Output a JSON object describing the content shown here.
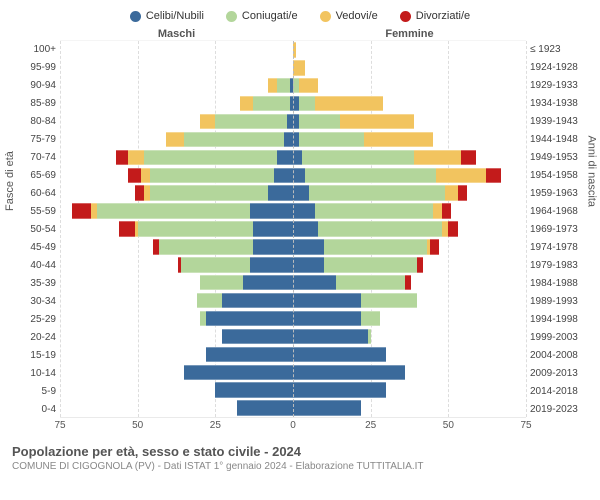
{
  "legend": [
    {
      "label": "Celibi/Nubili",
      "color": "#3b6a9b"
    },
    {
      "label": "Coniugati/e",
      "color": "#b3d69b"
    },
    {
      "label": "Vedovi/e",
      "color": "#f2c45f"
    },
    {
      "label": "Divorziati/e",
      "color": "#c31b1b"
    }
  ],
  "header_male": "Maschi",
  "header_female": "Femmine",
  "axis_left_title": "Fasce di età",
  "axis_right_title": "Anni di nascita",
  "x_max": 75,
  "x_ticks_male": [
    75,
    50,
    25
  ],
  "x_ticks_female": [
    25,
    50,
    75
  ],
  "title": "Popolazione per età, sesso e stato civile - 2024",
  "subtitle": "COMUNE DI CIGOGNOLA (PV) - Dati ISTAT 1° gennaio 2024 - Elaborazione TUTTITALIA.IT",
  "colors": {
    "celibi": "#3b6a9b",
    "coniugati": "#b3d69b",
    "vedovi": "#f2c45f",
    "divorziati": "#c31b1b",
    "grid": "#dddddd",
    "centerline": "#bbbbbb",
    "text": "#555555",
    "bg": "#ffffff"
  },
  "style": {
    "bar_gap_ratio": 0.14,
    "font_family": "Arial, Helvetica, sans-serif",
    "legend_fontsize": 11,
    "axis_fontsize": 10,
    "title_fontsize": 13,
    "subtitle_fontsize": 10
  },
  "rows": [
    {
      "age": "100+",
      "birth": "≤ 1923",
      "m": {
        "c": 0,
        "co": 0,
        "v": 0,
        "d": 0
      },
      "f": {
        "c": 0,
        "co": 0,
        "v": 1,
        "d": 0
      }
    },
    {
      "age": "95-99",
      "birth": "1924-1928",
      "m": {
        "c": 0,
        "co": 0,
        "v": 0,
        "d": 0
      },
      "f": {
        "c": 0,
        "co": 0,
        "v": 4,
        "d": 0
      }
    },
    {
      "age": "90-94",
      "birth": "1929-1933",
      "m": {
        "c": 1,
        "co": 4,
        "v": 3,
        "d": 0
      },
      "f": {
        "c": 0,
        "co": 2,
        "v": 6,
        "d": 0
      }
    },
    {
      "age": "85-89",
      "birth": "1934-1938",
      "m": {
        "c": 1,
        "co": 12,
        "v": 4,
        "d": 0
      },
      "f": {
        "c": 2,
        "co": 5,
        "v": 22,
        "d": 0
      }
    },
    {
      "age": "80-84",
      "birth": "1939-1943",
      "m": {
        "c": 2,
        "co": 23,
        "v": 5,
        "d": 0
      },
      "f": {
        "c": 2,
        "co": 13,
        "v": 24,
        "d": 0
      }
    },
    {
      "age": "75-79",
      "birth": "1944-1948",
      "m": {
        "c": 3,
        "co": 32,
        "v": 6,
        "d": 0
      },
      "f": {
        "c": 2,
        "co": 21,
        "v": 22,
        "d": 0
      }
    },
    {
      "age": "70-74",
      "birth": "1949-1953",
      "m": {
        "c": 5,
        "co": 43,
        "v": 5,
        "d": 4
      },
      "f": {
        "c": 3,
        "co": 36,
        "v": 15,
        "d": 5
      }
    },
    {
      "age": "65-69",
      "birth": "1954-1958",
      "m": {
        "c": 6,
        "co": 40,
        "v": 3,
        "d": 4
      },
      "f": {
        "c": 4,
        "co": 42,
        "v": 16,
        "d": 5
      }
    },
    {
      "age": "60-64",
      "birth": "1959-1963",
      "m": {
        "c": 8,
        "co": 38,
        "v": 2,
        "d": 3
      },
      "f": {
        "c": 5,
        "co": 44,
        "v": 4,
        "d": 3
      }
    },
    {
      "age": "55-59",
      "birth": "1964-1968",
      "m": {
        "c": 14,
        "co": 49,
        "v": 2,
        "d": 6
      },
      "f": {
        "c": 7,
        "co": 38,
        "v": 3,
        "d": 3
      }
    },
    {
      "age": "50-54",
      "birth": "1969-1973",
      "m": {
        "c": 13,
        "co": 37,
        "v": 1,
        "d": 5
      },
      "f": {
        "c": 8,
        "co": 40,
        "v": 2,
        "d": 3
      }
    },
    {
      "age": "45-49",
      "birth": "1974-1978",
      "m": {
        "c": 13,
        "co": 30,
        "v": 0,
        "d": 2
      },
      "f": {
        "c": 10,
        "co": 33,
        "v": 1,
        "d": 3
      }
    },
    {
      "age": "40-44",
      "birth": "1979-1983",
      "m": {
        "c": 14,
        "co": 22,
        "v": 0,
        "d": 1
      },
      "f": {
        "c": 10,
        "co": 30,
        "v": 0,
        "d": 2
      }
    },
    {
      "age": "35-39",
      "birth": "1984-1988",
      "m": {
        "c": 16,
        "co": 14,
        "v": 0,
        "d": 0
      },
      "f": {
        "c": 14,
        "co": 22,
        "v": 0,
        "d": 2
      }
    },
    {
      "age": "30-34",
      "birth": "1989-1993",
      "m": {
        "c": 23,
        "co": 8,
        "v": 0,
        "d": 0
      },
      "f": {
        "c": 22,
        "co": 18,
        "v": 0,
        "d": 0
      }
    },
    {
      "age": "25-29",
      "birth": "1994-1998",
      "m": {
        "c": 28,
        "co": 2,
        "v": 0,
        "d": 0
      },
      "f": {
        "c": 22,
        "co": 6,
        "v": 0,
        "d": 0
      }
    },
    {
      "age": "20-24",
      "birth": "1999-2003",
      "m": {
        "c": 23,
        "co": 0,
        "v": 0,
        "d": 0
      },
      "f": {
        "c": 24,
        "co": 1,
        "v": 0,
        "d": 0
      }
    },
    {
      "age": "15-19",
      "birth": "2004-2008",
      "m": {
        "c": 28,
        "co": 0,
        "v": 0,
        "d": 0
      },
      "f": {
        "c": 30,
        "co": 0,
        "v": 0,
        "d": 0
      }
    },
    {
      "age": "10-14",
      "birth": "2009-2013",
      "m": {
        "c": 35,
        "co": 0,
        "v": 0,
        "d": 0
      },
      "f": {
        "c": 36,
        "co": 0,
        "v": 0,
        "d": 0
      }
    },
    {
      "age": "5-9",
      "birth": "2014-2018",
      "m": {
        "c": 25,
        "co": 0,
        "v": 0,
        "d": 0
      },
      "f": {
        "c": 30,
        "co": 0,
        "v": 0,
        "d": 0
      }
    },
    {
      "age": "0-4",
      "birth": "2019-2023",
      "m": {
        "c": 18,
        "co": 0,
        "v": 0,
        "d": 0
      },
      "f": {
        "c": 22,
        "co": 0,
        "v": 0,
        "d": 0
      }
    }
  ]
}
